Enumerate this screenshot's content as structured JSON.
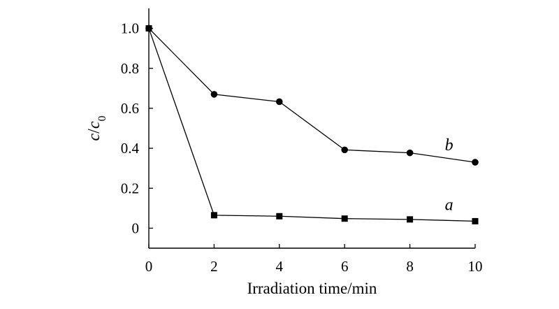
{
  "chart_data": {
    "type": "line",
    "title": "",
    "xlabel": "Irradiation time/min",
    "ylabel": {
      "main": "c",
      "slash": "/",
      "denom": "c",
      "sub": "0"
    },
    "xlim": [
      0,
      10
    ],
    "ylim": [
      -0.1,
      1.1
    ],
    "xticks": [
      0,
      2,
      4,
      6,
      8,
      10
    ],
    "xtick_labels": [
      "0",
      "2",
      "4",
      "6",
      "8",
      "10"
    ],
    "yticks": [
      0,
      0.2,
      0.4,
      0.6,
      0.8,
      1.0
    ],
    "ytick_labels": [
      "0",
      "0.2",
      "0.4",
      "0.6",
      "0.8",
      "1.0"
    ],
    "series": [
      {
        "name": "a",
        "marker": "square",
        "x": [
          0,
          2,
          4,
          6,
          8,
          10
        ],
        "y": [
          1.0,
          0.065,
          0.06,
          0.048,
          0.044,
          0.035
        ]
      },
      {
        "name": "b",
        "marker": "circle",
        "x": [
          0,
          2,
          4,
          6,
          8,
          10
        ],
        "y": [
          1.0,
          0.67,
          0.633,
          0.392,
          0.377,
          0.33
        ]
      }
    ]
  }
}
